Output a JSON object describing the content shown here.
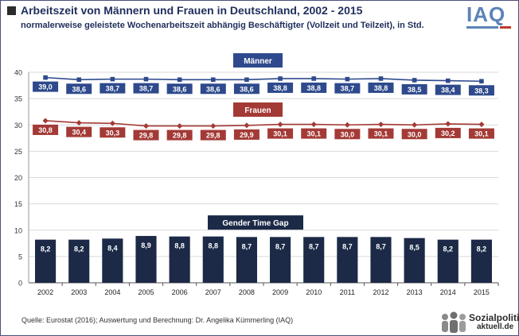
{
  "header": {
    "title": "Arbeitszeit von Männern und Frauen in Deutschland, 2002 - 2015",
    "subtitle": "normalerweise geleistete Wochenarbeitszeit abhängig Beschäftigter (Vollzeit und Teilzeit), in Std."
  },
  "logo": {
    "text": "IAQ"
  },
  "footer": {
    "source": "Quelle: Eurostat (2016); Auswertung und Berechnung: Dr. Angelika Kümmerling (IAQ)",
    "brand_line1": "Sozialpolitik-",
    "brand_line2": "aktuell.de"
  },
  "chart_data": {
    "type": "line",
    "categories": [
      "2002",
      "2003",
      "2004",
      "2005",
      "2006",
      "2007",
      "2008",
      "2009",
      "2010",
      "2011",
      "2012",
      "2013",
      "2014",
      "2015"
    ],
    "y_ticks": [
      "0",
      "5",
      "10",
      "15",
      "20",
      "25",
      "30",
      "35",
      "40"
    ],
    "ylim": [
      0,
      40
    ],
    "grid": true,
    "series": [
      {
        "name": "Männer",
        "type": "line",
        "color": "#2e4a8c",
        "values": [
          39.0,
          38.6,
          38.7,
          38.7,
          38.6,
          38.6,
          38.6,
          38.8,
          38.8,
          38.7,
          38.8,
          38.5,
          38.4,
          38.3
        ],
        "labels": [
          "39,0",
          "38,6",
          "38,7",
          "38,7",
          "38,6",
          "38,6",
          "38,6",
          "38,8",
          "38,8",
          "38,7",
          "38,8",
          "38,5",
          "38,4",
          "38,3"
        ]
      },
      {
        "name": "Frauen",
        "type": "line",
        "color": "#a33a36",
        "values": [
          30.8,
          30.4,
          30.3,
          29.8,
          29.8,
          29.8,
          29.9,
          30.1,
          30.1,
          30.0,
          30.1,
          30.0,
          30.2,
          30.1
        ],
        "labels": [
          "30,8",
          "30,4",
          "30,3",
          "29,8",
          "29,8",
          "29,8",
          "29,9",
          "30,1",
          "30,1",
          "30,0",
          "30,1",
          "30,0",
          "30,2",
          "30,1"
        ]
      },
      {
        "name": "Gender Time Gap",
        "type": "bar",
        "color": "#1c2a47",
        "values": [
          8.2,
          8.2,
          8.4,
          8.9,
          8.8,
          8.8,
          8.7,
          8.7,
          8.7,
          8.7,
          8.7,
          8.5,
          8.2,
          8.2
        ],
        "labels": [
          "8,2",
          "8,2",
          "8,4",
          "8,9",
          "8,8",
          "8,8",
          "8,7",
          "8,7",
          "8,7",
          "8,7",
          "8,7",
          "8,5",
          "8,2",
          "8,2"
        ]
      }
    ]
  }
}
